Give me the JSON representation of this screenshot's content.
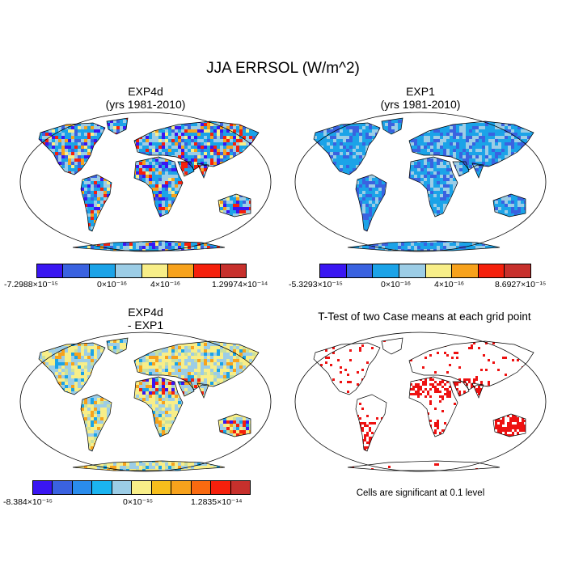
{
  "title": "JJA ERRSOL (W/m^2)",
  "panels": [
    {
      "title1": "EXP4d",
      "title2": "(yrs 1981-2010)"
    },
    {
      "title1": "EXP1",
      "title2": "(yrs 1981-2010)"
    },
    {
      "title1": "EXP4d",
      "title2": "- EXP1"
    },
    {
      "title1": "T-Test of two Case means at each grid point",
      "title2": ""
    }
  ],
  "colorbars": [
    {
      "colors": [
        "#3a16f2",
        "#3a62e0",
        "#1ba3e8",
        "#9ccde6",
        "#f8ee88",
        "#f7a21c",
        "#f5200c",
        "#c7302c"
      ],
      "labels": [
        "-7.2988×10⁻¹⁵",
        "0×10⁻¹⁶",
        "4×10⁻¹⁶",
        "1.29974×10⁻¹⁴"
      ]
    },
    {
      "colors": [
        "#3a16f2",
        "#3a62e0",
        "#1ba3e8",
        "#9ccde6",
        "#f8ee88",
        "#f7a21c",
        "#f5200c",
        "#c7302c"
      ],
      "labels": [
        "-5.3293×10⁻¹⁵",
        "0×10⁻¹⁶",
        "4×10⁻¹⁶",
        "8.6927×10⁻¹⁵"
      ]
    },
    {
      "colors": [
        "#3a16f2",
        "#3a62e0",
        "#2a8cec",
        "#1bb4f0",
        "#9ccde6",
        "#f8ee88",
        "#f7be1c",
        "#f7a21c",
        "#f96a10",
        "#f5200c",
        "#c7302c"
      ],
      "labels": [
        "-8.384×10⁻¹⁵",
        "0×10⁻¹⁵",
        "1.2835×10⁻¹⁴"
      ]
    }
  ],
  "note": "Cells are significant at 0.1 level",
  "map_colors": {
    "ocean": "#ffffff",
    "coast": "#000000",
    "significant": "#ee1111"
  }
}
